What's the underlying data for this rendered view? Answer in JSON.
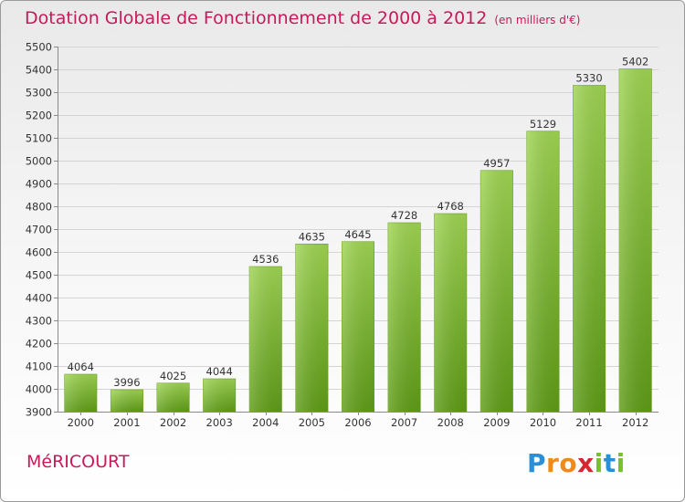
{
  "header": {
    "title": "Dotation Globale de Fonctionnement de 2000 à 2012",
    "unit": "(en milliers d'€)"
  },
  "footer": {
    "commune": "MéRICOURT",
    "brand": "Proxiti",
    "brand_letters": [
      {
        "ch": "P",
        "color": "#2a8fd6"
      },
      {
        "ch": "r",
        "color": "#f08a1c"
      },
      {
        "ch": "o",
        "color": "#f08a1c"
      },
      {
        "ch": "x",
        "color": "#d6262f"
      },
      {
        "ch": "i",
        "color": "#7bbf2a"
      },
      {
        "ch": "t",
        "color": "#2a8fd6"
      },
      {
        "ch": "i",
        "color": "#7bbf2a"
      }
    ]
  },
  "colors": {
    "title": "#c8195a",
    "bar_top": "#9fd452",
    "bar_bottom": "#5e9c16",
    "grid": "#d4d4d4",
    "axis": "#8a8a8a"
  },
  "chart_data": {
    "type": "bar",
    "categories": [
      "2000",
      "2001",
      "2002",
      "2003",
      "2004",
      "2005",
      "2006",
      "2007",
      "2008",
      "2009",
      "2010",
      "2011",
      "2012"
    ],
    "values": [
      4064,
      3996,
      4025,
      4044,
      4536,
      4635,
      4645,
      4728,
      4768,
      4957,
      5129,
      5330,
      5402
    ],
    "title": "Dotation Globale de Fonctionnement de 2000 à 2012",
    "subtitle": "(en milliers d'€)",
    "ylim": [
      3900,
      5500
    ],
    "yticks": [
      3900,
      4000,
      4100,
      4200,
      4300,
      4400,
      4500,
      4600,
      4700,
      4800,
      4900,
      5000,
      5100,
      5200,
      5300,
      5400,
      5500
    ],
    "grid": true,
    "legend": "none"
  }
}
